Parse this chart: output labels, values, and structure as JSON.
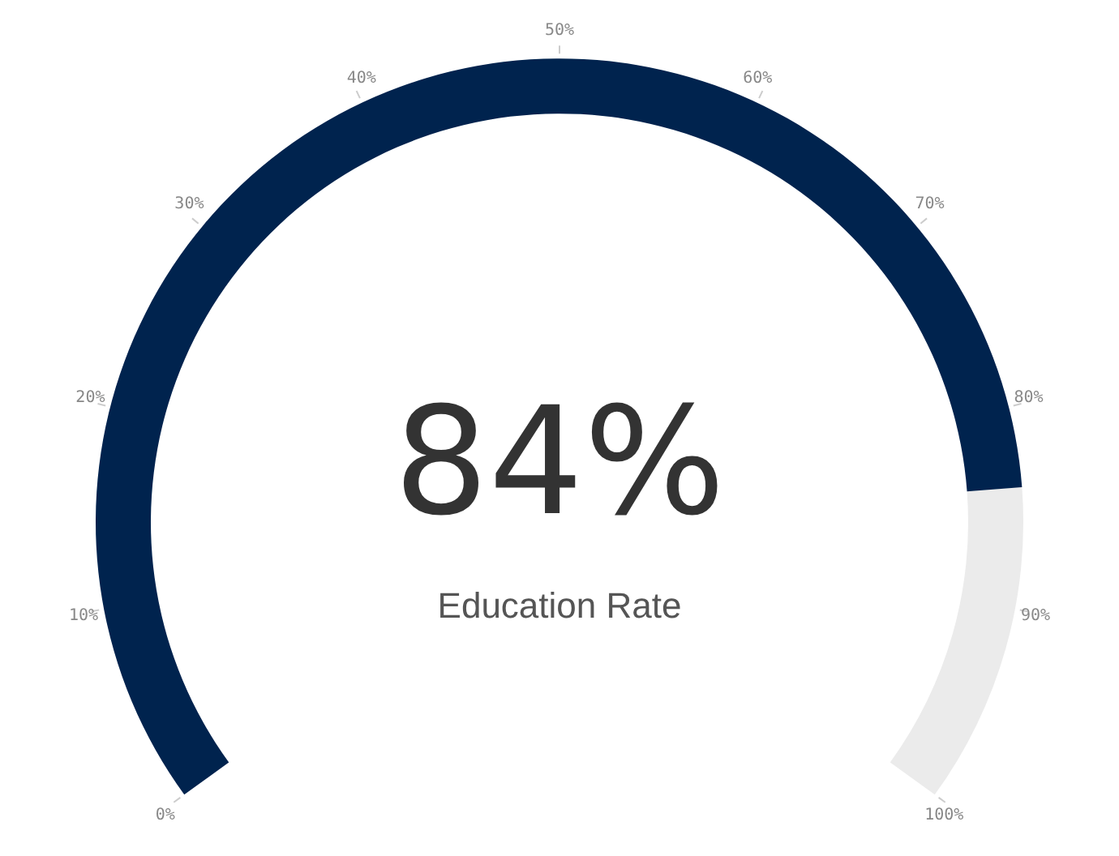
{
  "chart_data": {
    "type": "donut",
    "title": "Education Rate",
    "categories": [
      null,
      null
    ],
    "values": [
      84,
      16
    ],
    "value_labels": [
      "84%",
      null
    ],
    "colors": [
      "#00234e",
      "#ebebeb"
    ],
    "annotations": [
      "0%",
      "10%",
      "20%",
      "30%",
      "40%",
      "50%",
      "60%",
      "70%",
      "80%",
      "90%",
      "100%"
    ]
  }
}
